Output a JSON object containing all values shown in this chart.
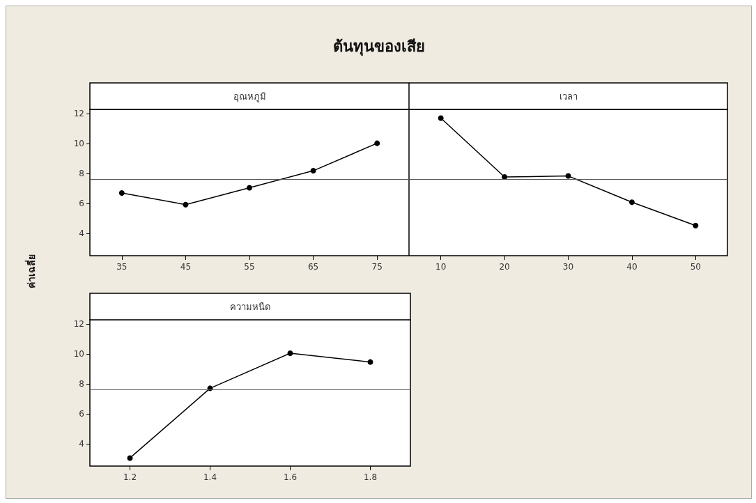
{
  "chart_data": [
    {
      "type": "other",
      "title": "ต้นทุนของเสีย",
      "ylabel": "ค่าเฉลี่ย"
    },
    {
      "type": "line",
      "title": "อุณหภูมิ",
      "x": [
        35,
        45,
        55,
        65,
        75
      ],
      "values": [
        6.7,
        5.92,
        7.05,
        8.19,
        10.03
      ],
      "color": "#000000",
      "xlim": [
        30,
        80
      ],
      "xticks": [
        35,
        45,
        55,
        65,
        75
      ],
      "ylim": [
        2.5,
        12.3
      ],
      "yticks": [
        4,
        6,
        8,
        10,
        12
      ],
      "ref_lines": [
        {
          "axis": "y",
          "value": 7.6,
          "color": "#555555"
        }
      ],
      "marker": "circle",
      "grid": false
    },
    {
      "type": "line",
      "title": "เวลา",
      "x": [
        10,
        20,
        30,
        40,
        50
      ],
      "values": [
        11.72,
        7.77,
        7.84,
        6.08,
        4.52
      ],
      "color": "#000000",
      "xlim": [
        5,
        55
      ],
      "xticks": [
        10,
        20,
        30,
        40,
        50
      ],
      "ylim": [
        2.5,
        12.3
      ],
      "yticks": [
        4,
        6,
        8,
        10,
        12
      ],
      "tick_labels": "x",
      "ref_lines": [
        {
          "axis": "y",
          "value": 7.6,
          "color": "#555555"
        }
      ],
      "marker": "circle",
      "grid": false
    },
    {
      "type": "line",
      "title": "ความหนืด",
      "x": [
        1.2,
        1.4,
        1.6,
        1.8
      ],
      "values": [
        3.04,
        7.71,
        10.06,
        9.47
      ],
      "color": "#000000",
      "xlim": [
        1.1,
        1.9
      ],
      "xticks": [
        1.2,
        1.4,
        1.6,
        1.8
      ],
      "ylim": [
        2.5,
        12.3
      ],
      "yticks": [
        4,
        6,
        8,
        10,
        12
      ],
      "ref_lines": [
        {
          "axis": "y",
          "value": 7.6,
          "color": "#555555"
        }
      ],
      "marker": "circle",
      "grid": false
    }
  ]
}
